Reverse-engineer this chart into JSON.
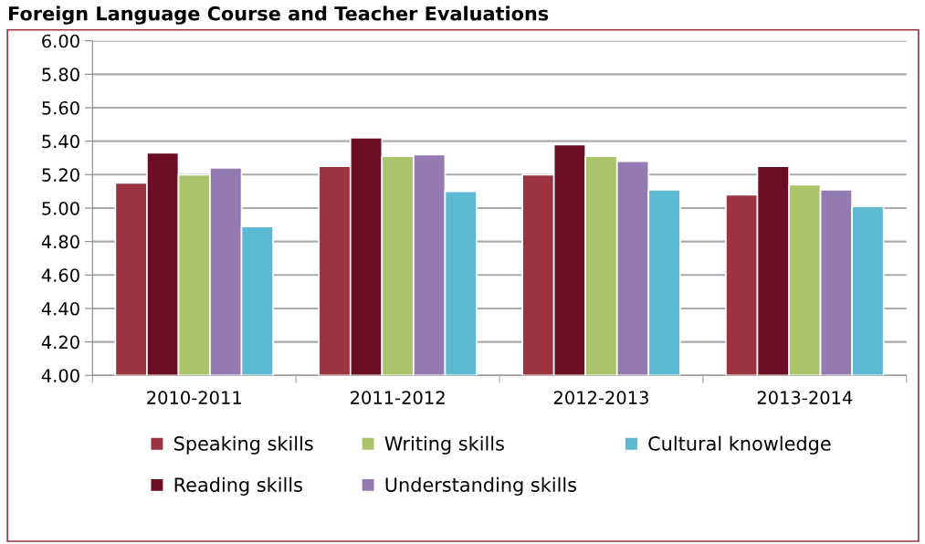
{
  "chart_data": {
    "type": "bar",
    "title": "Foreign Language Course and Teacher Evaluations",
    "categories": [
      "2010-2011",
      "2011-2012",
      "2012-2013",
      "2013-2014"
    ],
    "series": [
      {
        "name": "Speaking skills",
        "color": "#9b3340",
        "values": [
          5.15,
          5.25,
          5.2,
          5.08
        ]
      },
      {
        "name": "Reading skills",
        "color": "#6b0d23",
        "values": [
          5.33,
          5.42,
          5.38,
          5.25
        ]
      },
      {
        "name": "Writing skills",
        "color": "#abc46b",
        "values": [
          5.2,
          5.31,
          5.31,
          5.14
        ]
      },
      {
        "name": "Understanding skills",
        "color": "#937bb1",
        "values": [
          5.24,
          5.32,
          5.28,
          5.11
        ]
      },
      {
        "name": "Cultural knowledge",
        "color": "#5bb9d1",
        "values": [
          4.89,
          5.1,
          5.11,
          5.01
        ]
      }
    ],
    "ylim": [
      4.0,
      6.0
    ],
    "yticks": [
      {
        "value": 4.0,
        "label": "4.00"
      },
      {
        "value": 4.2,
        "label": "4.20"
      },
      {
        "value": 4.4,
        "label": "4.40"
      },
      {
        "value": 4.6,
        "label": "4.60"
      },
      {
        "value": 4.8,
        "label": "4.80"
      },
      {
        "value": 5.0,
        "label": "5.00"
      },
      {
        "value": 5.2,
        "label": "5.20"
      },
      {
        "value": 5.4,
        "label": "5.40"
      },
      {
        "value": 5.6,
        "label": "5.60"
      },
      {
        "value": 5.8,
        "label": "5.80"
      },
      {
        "value": 6.0,
        "label": "6.00"
      }
    ],
    "grid": "y",
    "legend": "bottom"
  }
}
